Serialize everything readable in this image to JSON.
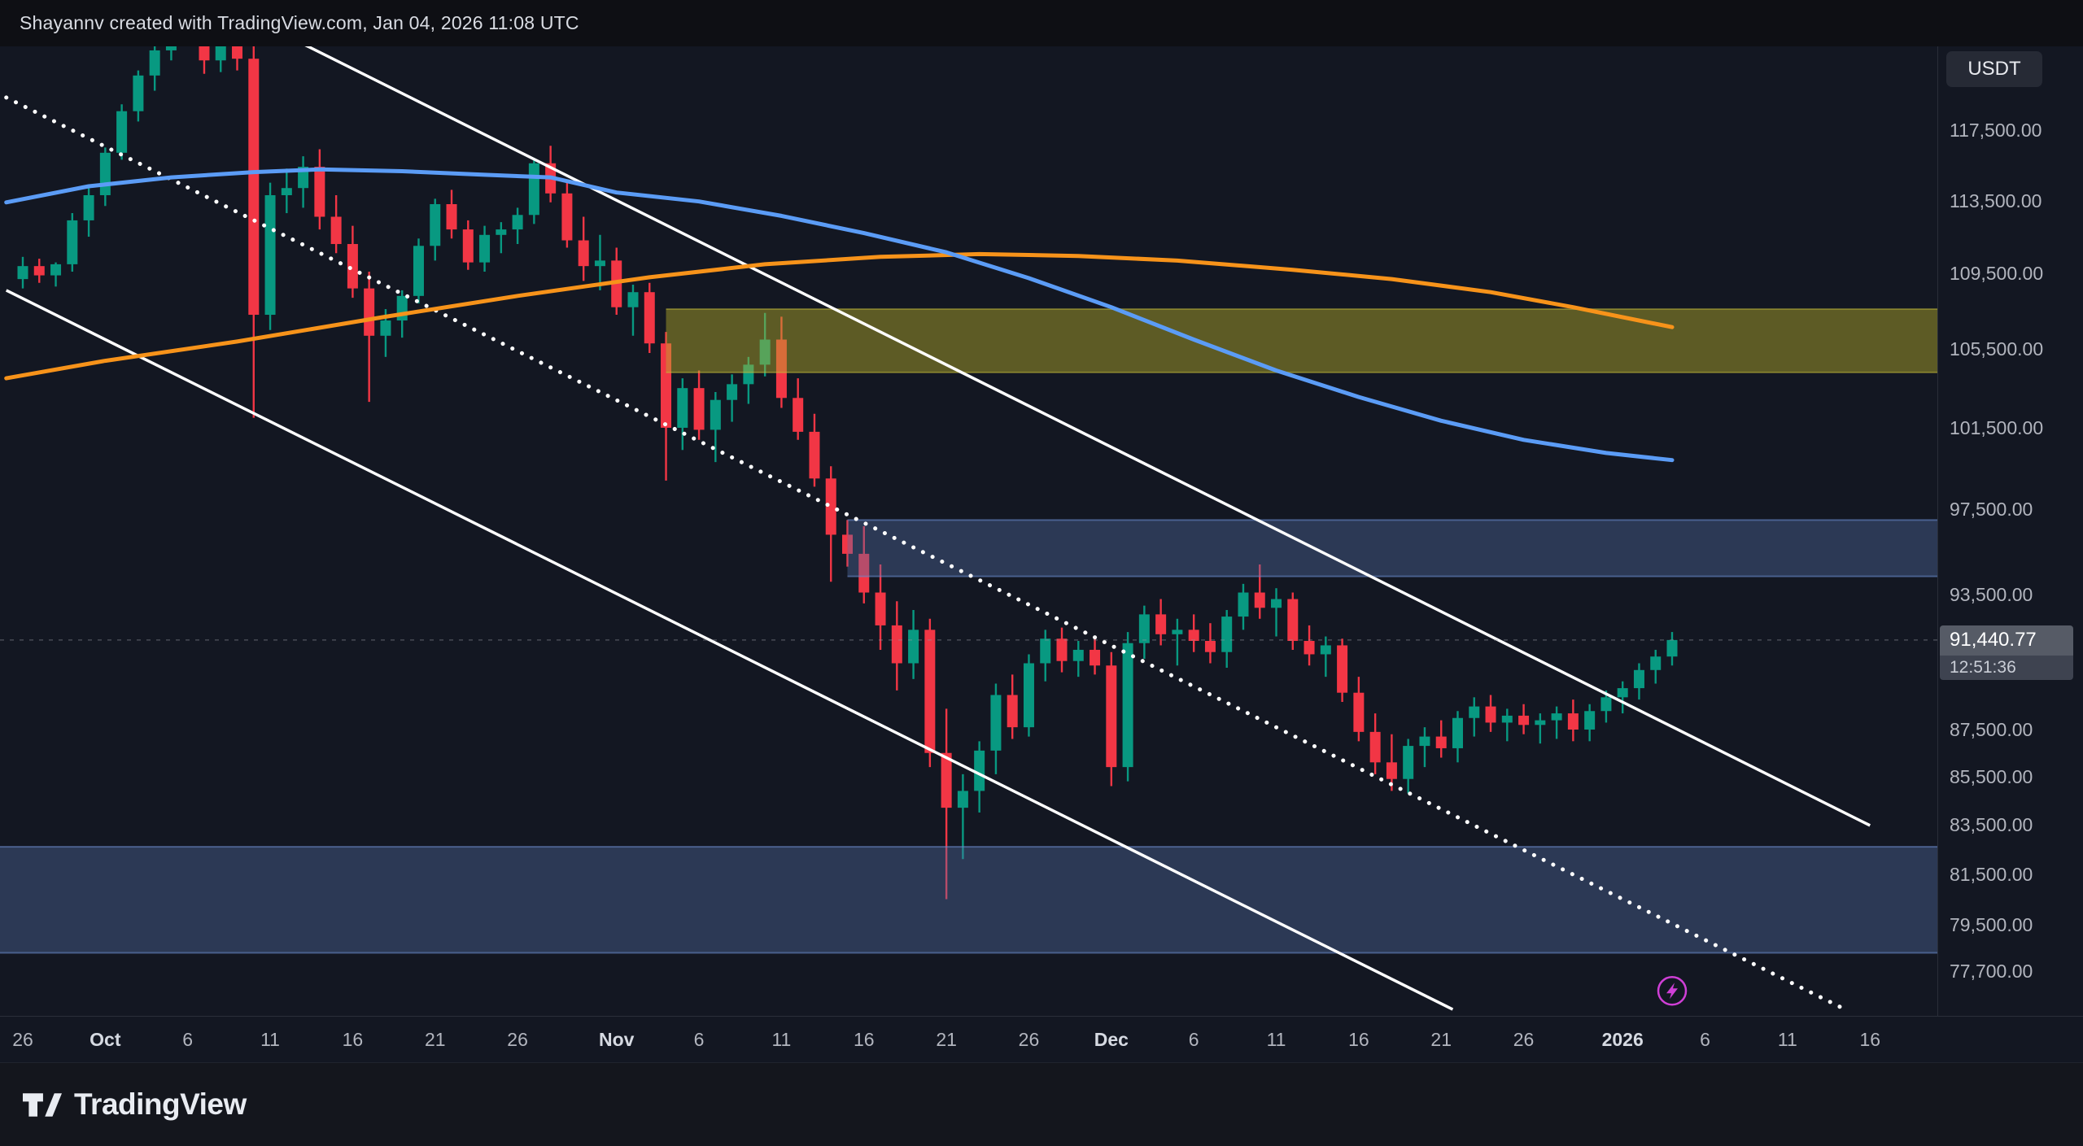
{
  "header": {
    "attribution": "Shayannv created with TradingView.com, Jan 04, 2026 11:08 UTC"
  },
  "price_axis": {
    "currency_badge": "USDT",
    "last_price_label": "91,440.77",
    "countdown": "12:51:36"
  },
  "footer": {
    "brand": "TradingView"
  },
  "chart_data": {
    "type": "candlestick",
    "timeframe": "1D",
    "quote_currency": "USDT",
    "scale": "log",
    "visible_price_top": 125200,
    "visible_price_bottom": 76000,
    "last_price": 91440.77,
    "colors": {
      "up": "#089981",
      "down": "#f23645",
      "background": "#131722",
      "channel": "#ffffff",
      "ma_blue": "#5b9cf6",
      "ma_orange": "#f7931a",
      "marker": "#cf3fd6"
    },
    "y_ticks": [
      {
        "value": 117500,
        "label": "117,500.00"
      },
      {
        "value": 113500,
        "label": "113,500.00"
      },
      {
        "value": 109500,
        "label": "109,500.00"
      },
      {
        "value": 105500,
        "label": "105,500.00"
      },
      {
        "value": 101500,
        "label": "101,500.00"
      },
      {
        "value": 97500,
        "label": "97,500.00"
      },
      {
        "value": 93500,
        "label": "93,500.00"
      },
      {
        "value": 87500,
        "label": "87,500.00"
      },
      {
        "value": 85500,
        "label": "85,500.00"
      },
      {
        "value": 83500,
        "label": "83,500.00"
      },
      {
        "value": 81500,
        "label": "81,500.00"
      },
      {
        "value": 79500,
        "label": "79,500.00"
      },
      {
        "value": 77700,
        "label": "77,700.00"
      }
    ],
    "x_ticks": [
      {
        "label": "26",
        "day": 0,
        "major": false
      },
      {
        "label": "Oct",
        "day": 5,
        "major": true
      },
      {
        "label": "6",
        "day": 10,
        "major": false
      },
      {
        "label": "11",
        "day": 15,
        "major": false
      },
      {
        "label": "16",
        "day": 20,
        "major": false
      },
      {
        "label": "21",
        "day": 25,
        "major": false
      },
      {
        "label": "26",
        "day": 30,
        "major": false
      },
      {
        "label": "Nov",
        "day": 36,
        "major": true
      },
      {
        "label": "6",
        "day": 41,
        "major": false
      },
      {
        "label": "11",
        "day": 46,
        "major": false
      },
      {
        "label": "16",
        "day": 51,
        "major": false
      },
      {
        "label": "21",
        "day": 56,
        "major": false
      },
      {
        "label": "26",
        "day": 61,
        "major": false
      },
      {
        "label": "Dec",
        "day": 66,
        "major": true
      },
      {
        "label": "6",
        "day": 71,
        "major": false
      },
      {
        "label": "11",
        "day": 76,
        "major": false
      },
      {
        "label": "16",
        "day": 81,
        "major": false
      },
      {
        "label": "21",
        "day": 86,
        "major": false
      },
      {
        "label": "26",
        "day": 91,
        "major": false
      },
      {
        "label": "2026",
        "day": 97,
        "major": true
      },
      {
        "label": "6",
        "day": 102,
        "major": false
      },
      {
        "label": "11",
        "day": 107,
        "major": false
      },
      {
        "label": "16",
        "day": 112,
        "major": false
      }
    ],
    "candles": [
      [
        "2025-09-26",
        109200,
        110400,
        108700,
        109900
      ],
      [
        "2025-09-27",
        109900,
        110300,
        109000,
        109400
      ],
      [
        "2025-09-28",
        109400,
        110100,
        108800,
        110000
      ],
      [
        "2025-09-29",
        110000,
        112800,
        109600,
        112400
      ],
      [
        "2025-09-30",
        112400,
        114200,
        111500,
        113800
      ],
      [
        "2025-10-01",
        113800,
        116500,
        113200,
        116200
      ],
      [
        "2025-10-02",
        116200,
        119000,
        115800,
        118600
      ],
      [
        "2025-10-03",
        118600,
        121000,
        118000,
        120700
      ],
      [
        "2025-10-04",
        120700,
        122500,
        119800,
        122200
      ],
      [
        "2025-10-05",
        122200,
        124200,
        121600,
        123900
      ],
      [
        "2025-10-06",
        123900,
        126200,
        123000,
        125700
      ],
      [
        "2025-10-07",
        125700,
        126300,
        120800,
        121600
      ],
      [
        "2025-10-08",
        121600,
        124400,
        120900,
        123800
      ],
      [
        "2025-10-09",
        123800,
        124200,
        121000,
        121700
      ],
      [
        "2025-10-10",
        121700,
        122600,
        102000,
        107300
      ],
      [
        "2025-10-11",
        107300,
        114500,
        106500,
        113800
      ],
      [
        "2025-10-12",
        113800,
        115300,
        112800,
        114200
      ],
      [
        "2025-10-13",
        114200,
        116000,
        113100,
        115400
      ],
      [
        "2025-10-14",
        115400,
        116400,
        111900,
        112600
      ],
      [
        "2025-10-15",
        112600,
        113800,
        110600,
        111100
      ],
      [
        "2025-10-16",
        111100,
        112100,
        108200,
        108700
      ],
      [
        "2025-10-17",
        108700,
        109600,
        102800,
        106200
      ],
      [
        "2025-10-18",
        106200,
        107600,
        105100,
        107000
      ],
      [
        "2025-10-19",
        107000,
        108600,
        106100,
        108300
      ],
      [
        "2025-10-20",
        108300,
        111400,
        107900,
        111000
      ],
      [
        "2025-10-21",
        111000,
        113600,
        110200,
        113300
      ],
      [
        "2025-10-22",
        113300,
        114100,
        111400,
        111900
      ],
      [
        "2025-10-23",
        111900,
        112400,
        109700,
        110100
      ],
      [
        "2025-10-24",
        110100,
        112100,
        109600,
        111600
      ],
      [
        "2025-10-25",
        111600,
        112300,
        110600,
        111900
      ],
      [
        "2025-10-26",
        111900,
        113100,
        111100,
        112700
      ],
      [
        "2025-10-27",
        112700,
        115900,
        112200,
        115600
      ],
      [
        "2025-10-28",
        115600,
        116600,
        113400,
        113900
      ],
      [
        "2025-10-29",
        113900,
        114600,
        110900,
        111300
      ],
      [
        "2025-10-30",
        111300,
        112600,
        109100,
        109900
      ],
      [
        "2025-10-31",
        109900,
        111600,
        108600,
        110200
      ],
      [
        "2025-11-01",
        110200,
        110900,
        107300,
        107700
      ],
      [
        "2025-11-02",
        107700,
        108900,
        106200,
        108500
      ],
      [
        "2025-11-03",
        108500,
        109000,
        105300,
        105800
      ],
      [
        "2025-11-04",
        105800,
        106400,
        98900,
        101500
      ],
      [
        "2025-11-05",
        101500,
        104000,
        100400,
        103500
      ],
      [
        "2025-11-06",
        103500,
        104400,
        100900,
        101400
      ],
      [
        "2025-11-07",
        101400,
        103300,
        99800,
        102900
      ],
      [
        "2025-11-08",
        102900,
        104200,
        101800,
        103700
      ],
      [
        "2025-11-09",
        103700,
        105100,
        102700,
        104700
      ],
      [
        "2025-11-10",
        104700,
        107400,
        104100,
        106000
      ],
      [
        "2025-11-11",
        106000,
        107200,
        102500,
        103000
      ],
      [
        "2025-11-12",
        103000,
        104000,
        100900,
        101300
      ],
      [
        "2025-11-13",
        101300,
        102200,
        98600,
        99000
      ],
      [
        "2025-11-14",
        99000,
        99600,
        94100,
        96300
      ],
      [
        "2025-11-15",
        96300,
        97000,
        94800,
        95400
      ],
      [
        "2025-11-16",
        95400,
        96700,
        93100,
        93600
      ],
      [
        "2025-11-17",
        93600,
        94900,
        91000,
        92100
      ],
      [
        "2025-11-18",
        92100,
        93200,
        89200,
        90400
      ],
      [
        "2025-11-19",
        90400,
        92800,
        89700,
        91900
      ],
      [
        "2025-11-20",
        91900,
        92400,
        85900,
        86500
      ],
      [
        "2025-11-21",
        86500,
        88400,
        80500,
        84200
      ],
      [
        "2025-11-22",
        84200,
        85600,
        82100,
        84900
      ],
      [
        "2025-11-23",
        84900,
        87000,
        84000,
        86600
      ],
      [
        "2025-11-24",
        86600,
        89500,
        85600,
        89000
      ],
      [
        "2025-11-25",
        89000,
        89900,
        87100,
        87600
      ],
      [
        "2025-11-26",
        87600,
        90800,
        87200,
        90400
      ],
      [
        "2025-11-27",
        90400,
        91900,
        89600,
        91500
      ],
      [
        "2025-11-28",
        91500,
        92000,
        90000,
        90500
      ],
      [
        "2025-11-29",
        90500,
        91400,
        89800,
        91000
      ],
      [
        "2025-11-30",
        91000,
        91500,
        89900,
        90300
      ],
      [
        "2025-12-01",
        90300,
        90900,
        85100,
        85900
      ],
      [
        "2025-12-02",
        85900,
        91800,
        85300,
        91300
      ],
      [
        "2025-12-03",
        91300,
        93000,
        90600,
        92600
      ],
      [
        "2025-12-04",
        92600,
        93300,
        91200,
        91700
      ],
      [
        "2025-12-05",
        91700,
        92400,
        90300,
        91900
      ],
      [
        "2025-12-06",
        91900,
        92600,
        90900,
        91400
      ],
      [
        "2025-12-07",
        91400,
        92200,
        90400,
        90900
      ],
      [
        "2025-12-08",
        90900,
        92800,
        90200,
        92500
      ],
      [
        "2025-12-09",
        92500,
        94000,
        91900,
        93600
      ],
      [
        "2025-12-10",
        93600,
        94900,
        92400,
        92900
      ],
      [
        "2025-12-11",
        92900,
        93800,
        91600,
        93300
      ],
      [
        "2025-12-12",
        93300,
        93600,
        91000,
        91400
      ],
      [
        "2025-12-13",
        91400,
        92100,
        90300,
        90800
      ],
      [
        "2025-12-14",
        90800,
        91600,
        89800,
        91200
      ],
      [
        "2025-12-15",
        91200,
        91500,
        88700,
        89100
      ],
      [
        "2025-12-16",
        89100,
        89800,
        87000,
        87400
      ],
      [
        "2025-12-17",
        87400,
        88200,
        85600,
        86100
      ],
      [
        "2025-12-18",
        86100,
        87300,
        84900,
        85400
      ],
      [
        "2025-12-19",
        85400,
        87100,
        84800,
        86800
      ],
      [
        "2025-12-20",
        86800,
        87600,
        85900,
        87200
      ],
      [
        "2025-12-21",
        87200,
        87900,
        86300,
        86700
      ],
      [
        "2025-12-22",
        86700,
        88300,
        86100,
        88000
      ],
      [
        "2025-12-23",
        88000,
        88900,
        87200,
        88500
      ],
      [
        "2025-12-24",
        88500,
        89000,
        87400,
        87800
      ],
      [
        "2025-12-25",
        87800,
        88400,
        87000,
        88100
      ],
      [
        "2025-12-26",
        88100,
        88600,
        87300,
        87700
      ],
      [
        "2025-12-27",
        87700,
        88200,
        86900,
        87900
      ],
      [
        "2025-12-28",
        87900,
        88500,
        87100,
        88200
      ],
      [
        "2025-12-29",
        88200,
        88800,
        87000,
        87500
      ],
      [
        "2025-12-30",
        87500,
        88600,
        87000,
        88300
      ],
      [
        "2025-12-31",
        88300,
        89200,
        87800,
        88900
      ],
      [
        "2026-01-01",
        88900,
        89600,
        88200,
        89300
      ],
      [
        "2026-01-02",
        89300,
        90400,
        88800,
        90100
      ],
      [
        "2026-01-03",
        90100,
        91000,
        89500,
        90700
      ],
      [
        "2026-01-04",
        90700,
        91800,
        90300,
        91440.77
      ]
    ],
    "ma_blue": {
      "name": "ma-blue-line",
      "color": "#5b9cf6",
      "points": [
        [
          -1,
          113400
        ],
        [
          4,
          114300
        ],
        [
          9,
          114800
        ],
        [
          14,
          115100
        ],
        [
          18,
          115250
        ],
        [
          23,
          115150
        ],
        [
          28,
          114950
        ],
        [
          32,
          114800
        ],
        [
          36,
          113950
        ],
        [
          41,
          113450
        ],
        [
          46,
          112650
        ],
        [
          51,
          111700
        ],
        [
          56,
          110650
        ],
        [
          61,
          109250
        ],
        [
          66,
          107700
        ],
        [
          71,
          106000
        ],
        [
          76,
          104400
        ],
        [
          81,
          103050
        ],
        [
          86,
          101850
        ],
        [
          91,
          100900
        ],
        [
          96,
          100250
        ],
        [
          100,
          99900
        ]
      ]
    },
    "ma_orange": {
      "name": "ma-orange-line",
      "color": "#f7931a",
      "points": [
        [
          -1,
          104000
        ],
        [
          5,
          104900
        ],
        [
          13,
          105900
        ],
        [
          22,
          107200
        ],
        [
          30,
          108300
        ],
        [
          38,
          109300
        ],
        [
          45,
          110000
        ],
        [
          52,
          110400
        ],
        [
          58,
          110550
        ],
        [
          64,
          110450
        ],
        [
          70,
          110200
        ],
        [
          77,
          109700
        ],
        [
          83,
          109200
        ],
        [
          89,
          108500
        ],
        [
          94,
          107700
        ],
        [
          100,
          106650
        ]
      ]
    },
    "zones": [
      {
        "name": "resistance-zone-yellow",
        "fill": "rgba(184,176,42,0.45)",
        "border": "rgba(200,190,60,0.45)",
        "price_top": 107600,
        "price_bottom": 104300,
        "from_day": 39
      },
      {
        "name": "resistance-zone-blue",
        "fill": "rgba(86,114,167,0.38)",
        "border": "rgba(108,140,205,0.55)",
        "price_top": 97000,
        "price_bottom": 94350,
        "from_day": 50
      },
      {
        "name": "support-zone-blue",
        "fill": "rgba(86,114,167,0.38)",
        "border": "rgba(108,140,205,0.55)",
        "price_top": 82600,
        "price_bottom": 78400,
        "from_day": -2
      }
    ],
    "trendlines": [
      {
        "name": "channel-upper-line",
        "style": "solid",
        "color": "#ffffff",
        "width": 3.5,
        "from": [
          16.5,
          122830
        ],
        "to": [
          112,
          83470
        ]
      },
      {
        "name": "channel-lower-line",
        "style": "solid",
        "color": "#ffffff",
        "width": 3.5,
        "from": [
          -1,
          108600
        ],
        "to": [
          86.7,
          76250
        ]
      },
      {
        "name": "channel-middle-dotted-line",
        "style": "dotted",
        "color": "#ffffff",
        "width": 5,
        "from": [
          -1,
          119400
        ],
        "to": [
          110.2,
          76340
        ]
      }
    ],
    "marker": {
      "name": "lightning-marker",
      "color": "#cf3fd6",
      "day": 100,
      "price": 76950
    }
  }
}
